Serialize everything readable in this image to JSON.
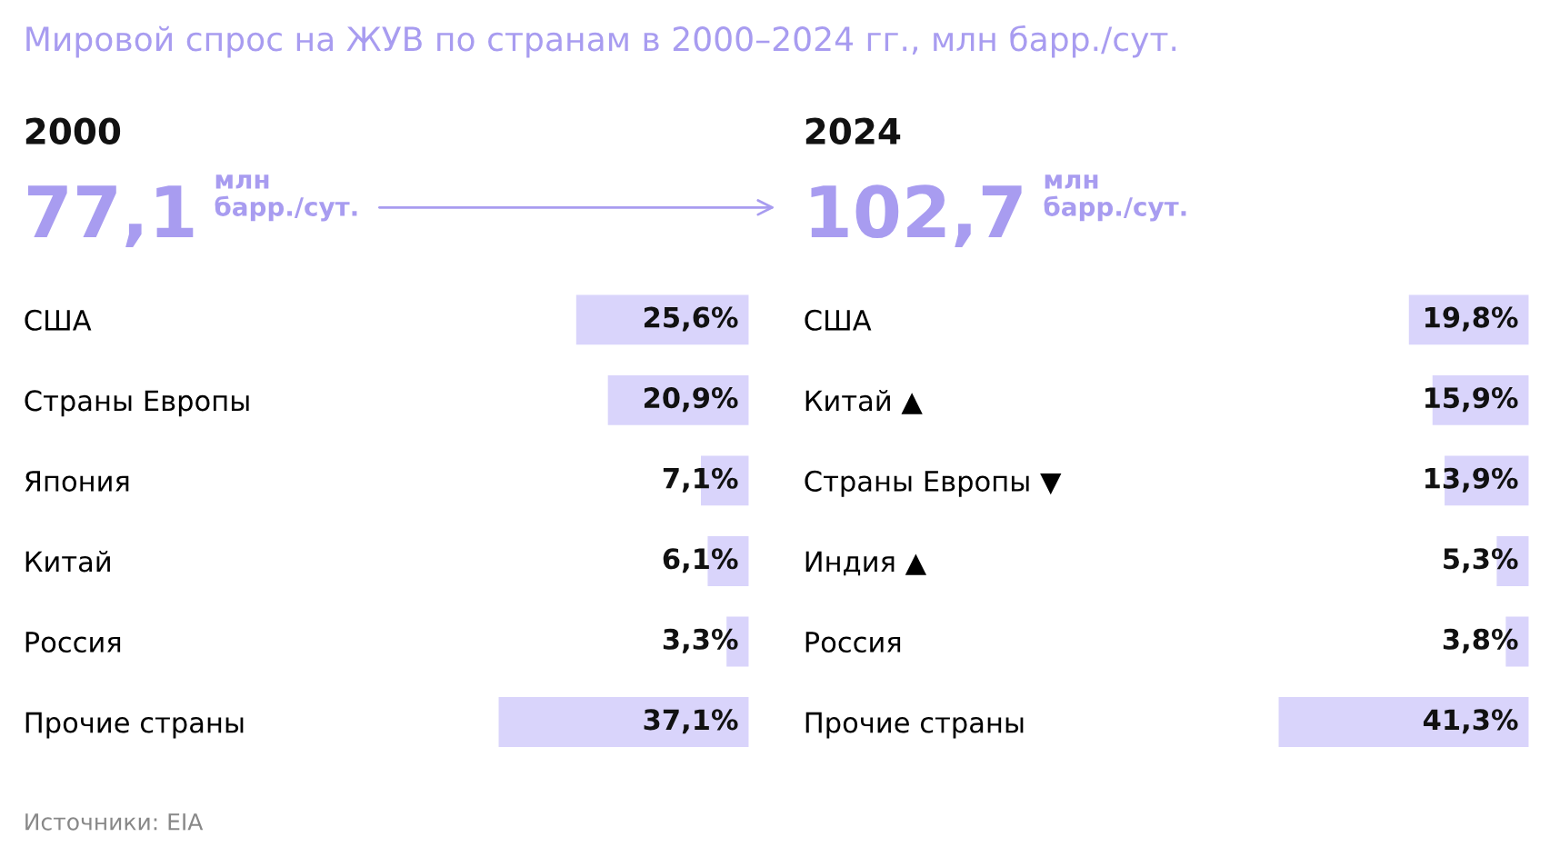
{
  "chart_data": [
    {
      "type": "bar",
      "orientation": "horizontal",
      "title": "2000",
      "subtitle": "77,1 млн барр./сут.",
      "categories": [
        "США",
        "Страны Европы",
        "Япония",
        "Китай",
        "Россия",
        "Прочие страны"
      ],
      "values": [
        25.6,
        20.9,
        7.1,
        6.1,
        3.3,
        37.1
      ],
      "value_labels": [
        "25,6%",
        "20,9%",
        "7,1%",
        "6,1%",
        "3,3%",
        "37,1%"
      ],
      "color": "#d9d4fb",
      "annotations": [
        "Мировой спрос на ЖУВ по странам в 2000–2024 гг., млн барр./сут.",
        "Источники: EIA"
      ]
    },
    {
      "type": "bar",
      "orientation": "horizontal",
      "title": "2024",
      "subtitle": "102,7 млн барр./сут.",
      "categories": [
        "США",
        "Китай ▲",
        "Страны Европы ▼",
        "Индия ▲",
        "Россия",
        "Прочие страны"
      ],
      "values": [
        19.8,
        15.9,
        13.9,
        5.3,
        3.8,
        41.3
      ],
      "value_labels": [
        "19,8%",
        "15,9%",
        "13,9%",
        "5,3%",
        "3,8%",
        "41,3%"
      ],
      "color": "#d9d4fb"
    }
  ]
}
